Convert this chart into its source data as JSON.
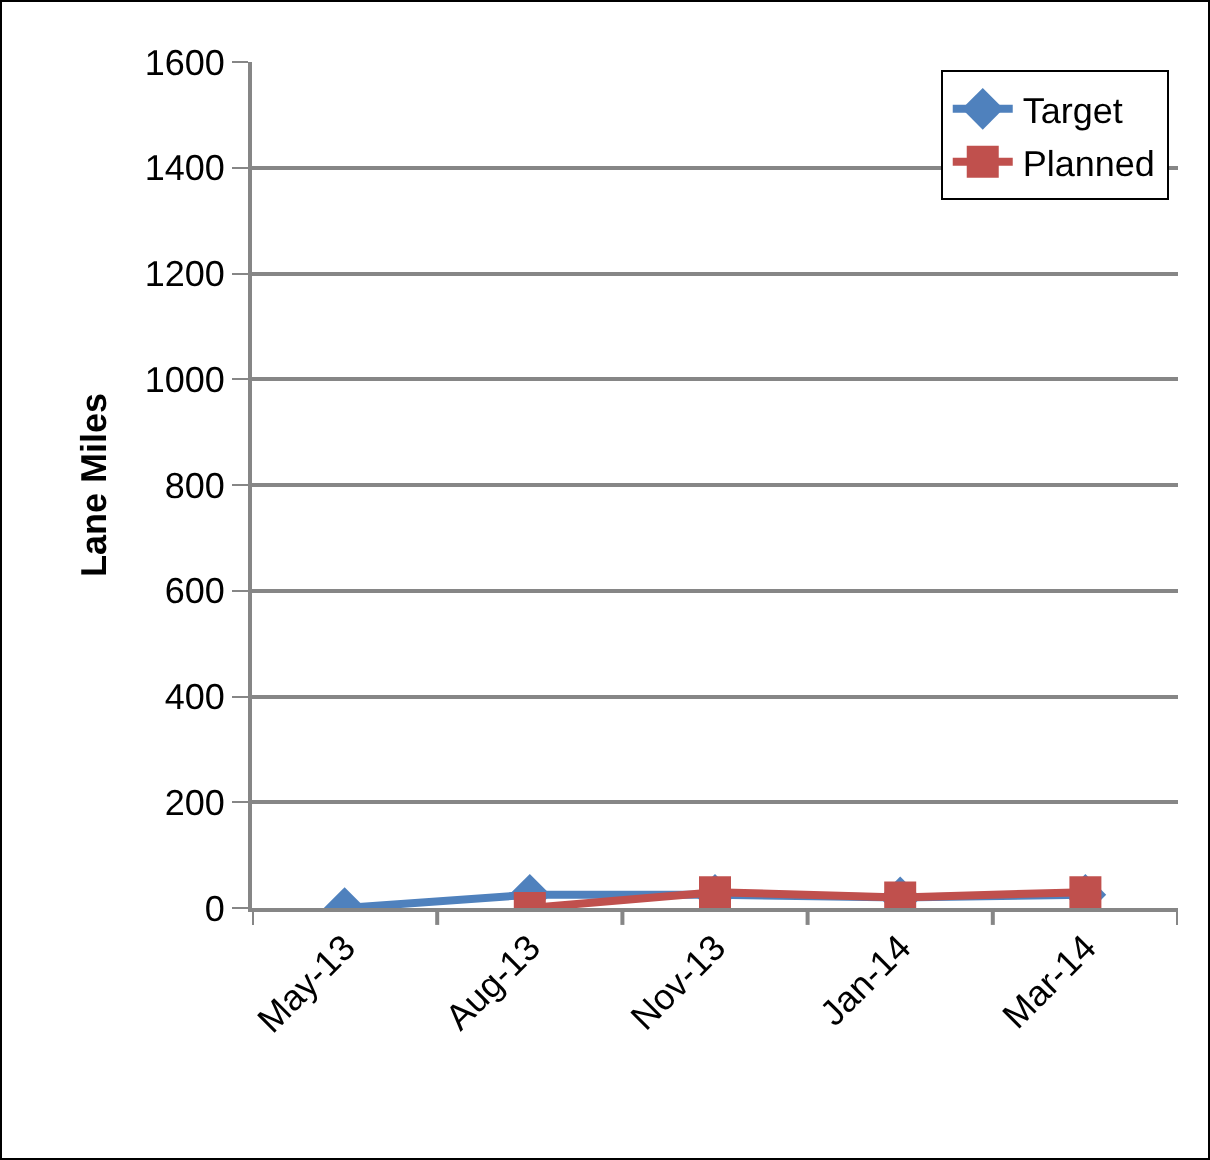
{
  "chart_data": {
    "type": "line",
    "ylabel": "Lane Miles",
    "categories": [
      "May-13",
      "Aug-13",
      "Nov-13",
      "Jan-14",
      "Mar-14"
    ],
    "series": [
      {
        "name": "Target",
        "color": "#4f81bd",
        "marker": "diamond",
        "values": [
          0,
          25,
          25,
          20,
          25
        ]
      },
      {
        "name": "Planned",
        "color": "#c0504d",
        "marker": "square",
        "values": [
          null,
          0,
          30,
          20,
          30
        ]
      }
    ],
    "ylim": [
      0,
      1600
    ],
    "yticks": [
      0,
      200,
      400,
      600,
      800,
      1000,
      1200,
      1400,
      1600
    ],
    "grid": "y",
    "legend": "top right",
    "line_style": "solid"
  }
}
